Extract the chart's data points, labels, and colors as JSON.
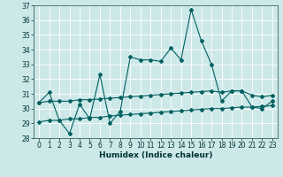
{
  "xlabel": "Humidex (Indice chaleur)",
  "bg_color": "#cde8e8",
  "grid_color": "#b0d0d0",
  "line_color": "#006060",
  "xlim": [
    -0.5,
    23.5
  ],
  "ylim": [
    28,
    37
  ],
  "yticks": [
    28,
    29,
    30,
    31,
    32,
    33,
    34,
    35,
    36,
    37
  ],
  "xticks": [
    0,
    1,
    2,
    3,
    4,
    5,
    6,
    7,
    8,
    9,
    10,
    11,
    12,
    13,
    14,
    15,
    16,
    17,
    18,
    19,
    20,
    21,
    22,
    23
  ],
  "series1_x": [
    0,
    1,
    2,
    3,
    4,
    5,
    6,
    7,
    8,
    9,
    10,
    11,
    12,
    13,
    14,
    15,
    16,
    17,
    18,
    19,
    20,
    21,
    22,
    23
  ],
  "series1_y": [
    30.4,
    31.1,
    29.2,
    28.3,
    30.3,
    29.3,
    32.3,
    29.0,
    29.8,
    33.5,
    33.3,
    33.3,
    33.2,
    34.1,
    33.3,
    36.7,
    34.6,
    33.0,
    30.5,
    31.2,
    31.2,
    30.1,
    30.0,
    30.5
  ],
  "series2_x": [
    0,
    1,
    2,
    3,
    4,
    5,
    6,
    7,
    8,
    9,
    10,
    11,
    12,
    13,
    14,
    15,
    16,
    17,
    18,
    19,
    20,
    21,
    22,
    23
  ],
  "series2_y": [
    30.4,
    30.5,
    30.5,
    30.5,
    30.6,
    30.6,
    30.65,
    30.7,
    30.75,
    30.8,
    30.85,
    30.9,
    30.95,
    31.0,
    31.05,
    31.1,
    31.15,
    31.2,
    31.1,
    31.2,
    31.2,
    30.9,
    30.8,
    30.9
  ],
  "series3_x": [
    0,
    1,
    2,
    3,
    4,
    5,
    6,
    7,
    8,
    9,
    10,
    11,
    12,
    13,
    14,
    15,
    16,
    17,
    18,
    19,
    20,
    21,
    22,
    23
  ],
  "series3_y": [
    29.1,
    29.2,
    29.2,
    29.3,
    29.3,
    29.4,
    29.4,
    29.5,
    29.55,
    29.6,
    29.65,
    29.7,
    29.75,
    29.8,
    29.85,
    29.9,
    29.95,
    30.0,
    30.0,
    30.05,
    30.1,
    30.1,
    30.15,
    30.2
  ],
  "xlabel_fontsize": 6.5,
  "tick_fontsize": 5.5,
  "marker_size": 2.0,
  "linewidth": 0.8
}
